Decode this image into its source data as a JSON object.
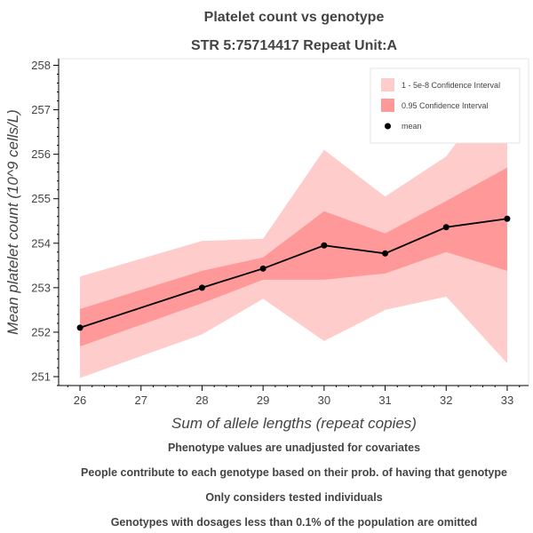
{
  "chart_data": {
    "type": "line",
    "title": "Platelet count vs genotype",
    "subtitle": "STR 5:75714417 Repeat Unit:A",
    "xlabel": "Sum of allele lengths (repeat copies)",
    "ylabel": "Mean platelet count (10^9 cells/L)",
    "xlim": [
      25.65,
      33.35
    ],
    "ylim": [
      250.8,
      258.15
    ],
    "x_ticks": [
      26,
      27,
      28,
      29,
      30,
      31,
      32,
      33
    ],
    "y_ticks": [
      251,
      252,
      253,
      254,
      255,
      256,
      257,
      258
    ],
    "grid": false,
    "legend_position": "top-right",
    "series": [
      {
        "name": "1 - 5e-8 Confidence Interval",
        "kind": "band",
        "color": "#ffcccc",
        "x": [
          26,
          28,
          29,
          30,
          31,
          32,
          33
        ],
        "lower": [
          250.97,
          251.95,
          252.75,
          251.8,
          252.5,
          252.8,
          251.3
        ],
        "upper": [
          253.25,
          254.05,
          254.1,
          256.1,
          255.05,
          255.95,
          257.8
        ]
      },
      {
        "name": "0.95 Confidence Interval",
        "kind": "band",
        "color": "#ff9999",
        "x": [
          26,
          28,
          29,
          30,
          31,
          32,
          33
        ],
        "lower": [
          251.68,
          252.65,
          253.18,
          253.18,
          253.32,
          253.8,
          253.38
        ],
        "upper": [
          252.52,
          253.38,
          253.68,
          254.72,
          254.22,
          254.95,
          255.7
        ]
      },
      {
        "name": "mean",
        "kind": "line",
        "color": "#000000",
        "x": [
          26,
          28,
          29,
          30,
          31,
          32,
          33
        ],
        "values": [
          252.1,
          253.0,
          253.43,
          253.95,
          253.77,
          254.36,
          254.55
        ]
      }
    ]
  },
  "footnotes": [
    "Phenotype values are unadjusted for covariates",
    "People contribute to each genotype based on their prob. of having that genotype",
    "Only considers tested individuals",
    "Genotypes with dosages less than 0.1% of the population are omitted"
  ]
}
